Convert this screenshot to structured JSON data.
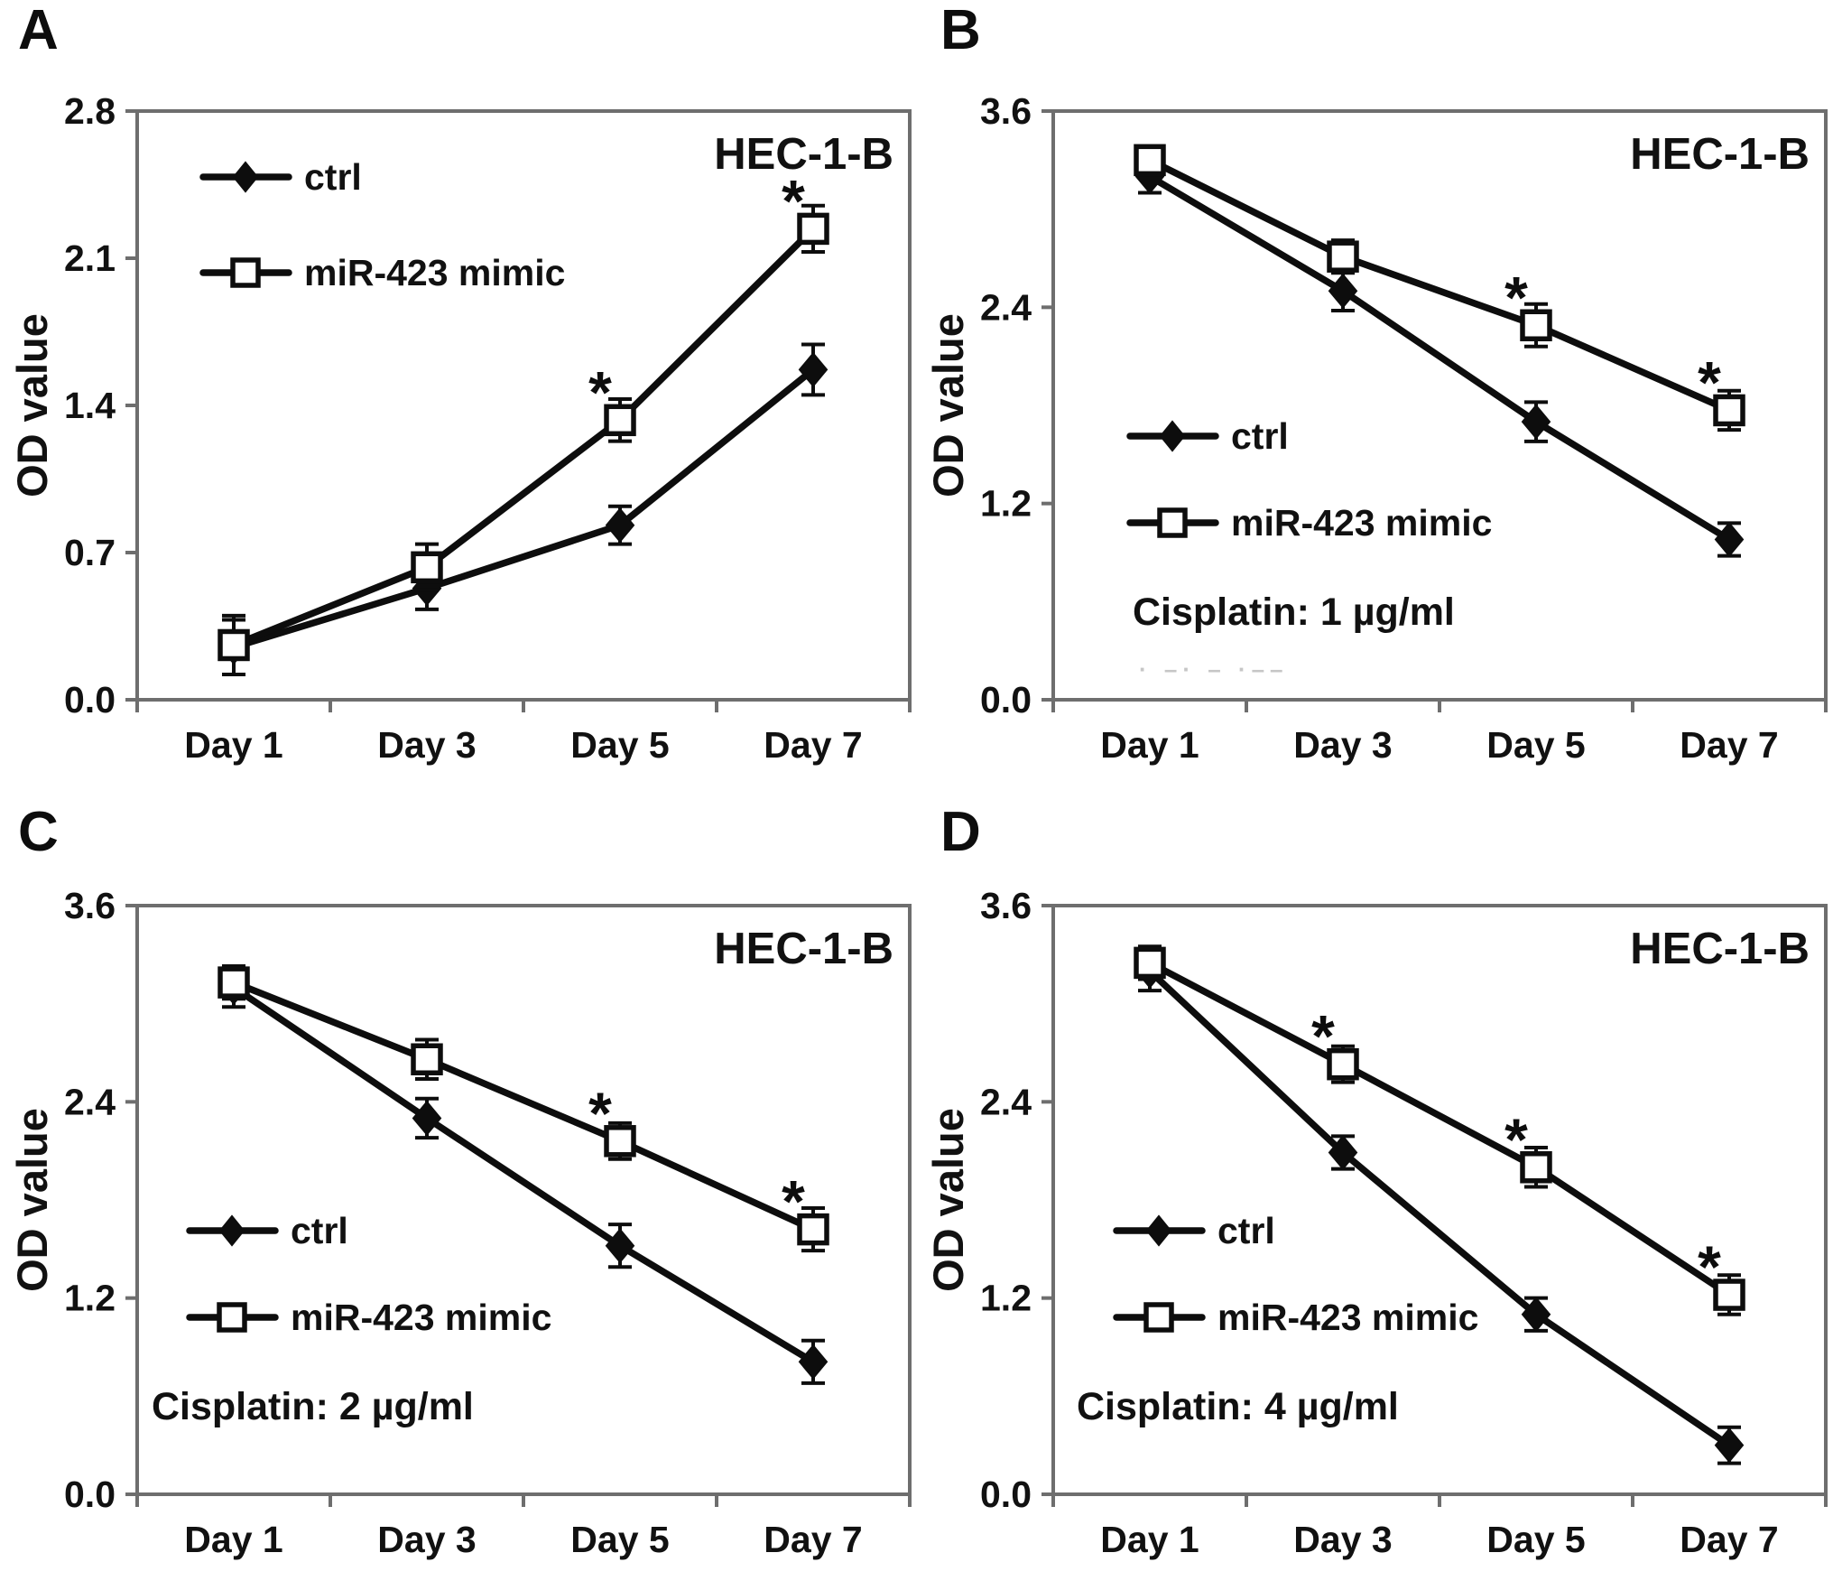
{
  "figure": {
    "background": "#ffffff",
    "text_color": "#111111",
    "axis_color": "#6e6e6e",
    "series_color": "#0d0d0d",
    "cell_line": "HEC-1-B"
  },
  "chart_data": [
    {
      "type": "line",
      "panel_label": "A",
      "title": "HEC-1-B",
      "xlabel": "",
      "ylabel": "OD value",
      "categories": [
        "Day 1",
        "Day 3",
        "Day 5",
        "Day 7"
      ],
      "ylim": [
        0,
        2.8
      ],
      "yticks": [
        0.0,
        0.7,
        1.4,
        2.1,
        2.8
      ],
      "ytick_labels": [
        "0.0",
        "0.7",
        "1.4",
        "2.1",
        "2.8"
      ],
      "grid": false,
      "legend_position": "top-left",
      "treatment_label": null,
      "artifact_text": null,
      "series": [
        {
          "name": "ctrl",
          "marker": "filled-diamond",
          "values": [
            0.25,
            0.53,
            0.83,
            1.57
          ],
          "errors": [
            0.13,
            0.1,
            0.09,
            0.12
          ]
        },
        {
          "name": "miR-423 mimic",
          "marker": "open-square",
          "values": [
            0.26,
            0.63,
            1.33,
            2.24
          ],
          "errors": [
            0.14,
            0.11,
            0.1,
            0.11
          ]
        }
      ],
      "significance": {
        "symbol": "*",
        "on_series": "miR-423 mimic",
        "categories": [
          "Day 5",
          "Day 7"
        ]
      }
    },
    {
      "type": "line",
      "panel_label": "B",
      "title": "HEC-1-B",
      "xlabel": "",
      "ylabel": "OD value",
      "categories": [
        "Day 1",
        "Day 3",
        "Day 5",
        "Day 7"
      ],
      "ylim": [
        0,
        3.6
      ],
      "yticks": [
        0.0,
        1.2,
        2.4,
        3.6
      ],
      "ytick_labels": [
        "0.0",
        "1.2",
        "2.4",
        "3.6"
      ],
      "grid": false,
      "legend_position": "middle-left",
      "treatment_label": "Cisplatin: 1 µg/ml",
      "artifact_text": "· –· – ·––",
      "series": [
        {
          "name": "ctrl",
          "marker": "filled-diamond",
          "values": [
            3.2,
            2.5,
            1.7,
            0.98
          ],
          "errors": [
            0.1,
            0.12,
            0.12,
            0.1
          ]
        },
        {
          "name": "miR-423 mimic",
          "marker": "open-square",
          "values": [
            3.3,
            2.71,
            2.29,
            1.77
          ],
          "errors": [
            0.08,
            0.1,
            0.13,
            0.12
          ]
        }
      ],
      "significance": {
        "symbol": "*",
        "on_series": "miR-423 mimic",
        "categories": [
          "Day 5",
          "Day 7"
        ]
      }
    },
    {
      "type": "line",
      "panel_label": "C",
      "title": "HEC-1-B",
      "xlabel": "",
      "ylabel": "OD value",
      "categories": [
        "Day 1",
        "Day 3",
        "Day 5",
        "Day 7"
      ],
      "ylim": [
        0,
        3.6
      ],
      "yticks": [
        0.0,
        1.2,
        2.4,
        3.6
      ],
      "ytick_labels": [
        "0.0",
        "1.2",
        "2.4",
        "3.6"
      ],
      "grid": false,
      "legend_position": "middle-left",
      "treatment_label": "Cisplatin: 2 µg/ml",
      "artifact_text": null,
      "series": [
        {
          "name": "ctrl",
          "marker": "filled-diamond",
          "values": [
            3.1,
            2.3,
            1.52,
            0.81
          ],
          "errors": [
            0.12,
            0.12,
            0.13,
            0.13
          ]
        },
        {
          "name": "miR-423 mimic",
          "marker": "open-square",
          "values": [
            3.13,
            2.66,
            2.16,
            1.62
          ],
          "errors": [
            0.1,
            0.12,
            0.11,
            0.13
          ]
        }
      ],
      "significance": {
        "symbol": "*",
        "on_series": "miR-423 mimic",
        "categories": [
          "Day 5",
          "Day 7"
        ]
      }
    },
    {
      "type": "line",
      "panel_label": "D",
      "title": "HEC-1-B",
      "xlabel": "",
      "ylabel": "OD value",
      "categories": [
        "Day 1",
        "Day 3",
        "Day 5",
        "Day 7"
      ],
      "ylim": [
        0,
        3.6
      ],
      "yticks": [
        0.0,
        1.2,
        2.4,
        3.6
      ],
      "ytick_labels": [
        "0.0",
        "1.2",
        "2.4",
        "3.6"
      ],
      "grid": false,
      "legend_position": "middle-left",
      "treatment_label": "Cisplatin: 4 µg/ml",
      "artifact_text": null,
      "series": [
        {
          "name": "ctrl",
          "marker": "filled-diamond",
          "values": [
            3.2,
            2.09,
            1.1,
            0.3
          ],
          "errors": [
            0.12,
            0.1,
            0.1,
            0.11
          ]
        },
        {
          "name": "miR-423 mimic",
          "marker": "open-square",
          "values": [
            3.25,
            2.63,
            2.0,
            1.22
          ],
          "errors": [
            0.1,
            0.11,
            0.12,
            0.12
          ]
        }
      ],
      "significance": {
        "symbol": "*",
        "on_series": "miR-423 mimic",
        "categories": [
          "Day 3",
          "Day 5",
          "Day 7"
        ]
      }
    }
  ]
}
